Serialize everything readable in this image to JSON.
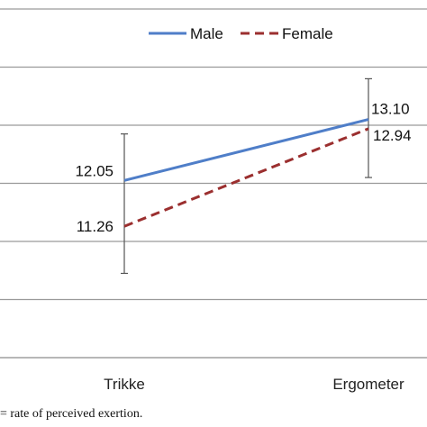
{
  "chart_data": {
    "type": "line",
    "categories": [
      "Trikke",
      "Ergometer"
    ],
    "series": [
      {
        "name": "Male",
        "values": [
          12.05,
          13.1
        ],
        "color": "#4f7ec8",
        "dash": "solid",
        "error": [
          null,
          [
            12.1,
            13.8
          ]
        ]
      },
      {
        "name": "Female",
        "values": [
          11.26,
          12.94
        ],
        "color": "#9b2f2f",
        "dash": "dashed",
        "error": [
          [
            10.45,
            12.85
          ],
          null
        ]
      }
    ],
    "data_labels": [
      "12.05",
      "13.10",
      "11.26",
      "12.94"
    ],
    "ylim": [
      9,
      15
    ],
    "grid": true,
    "legend": "top-right"
  },
  "footnote": "= rate of perceived exertion."
}
